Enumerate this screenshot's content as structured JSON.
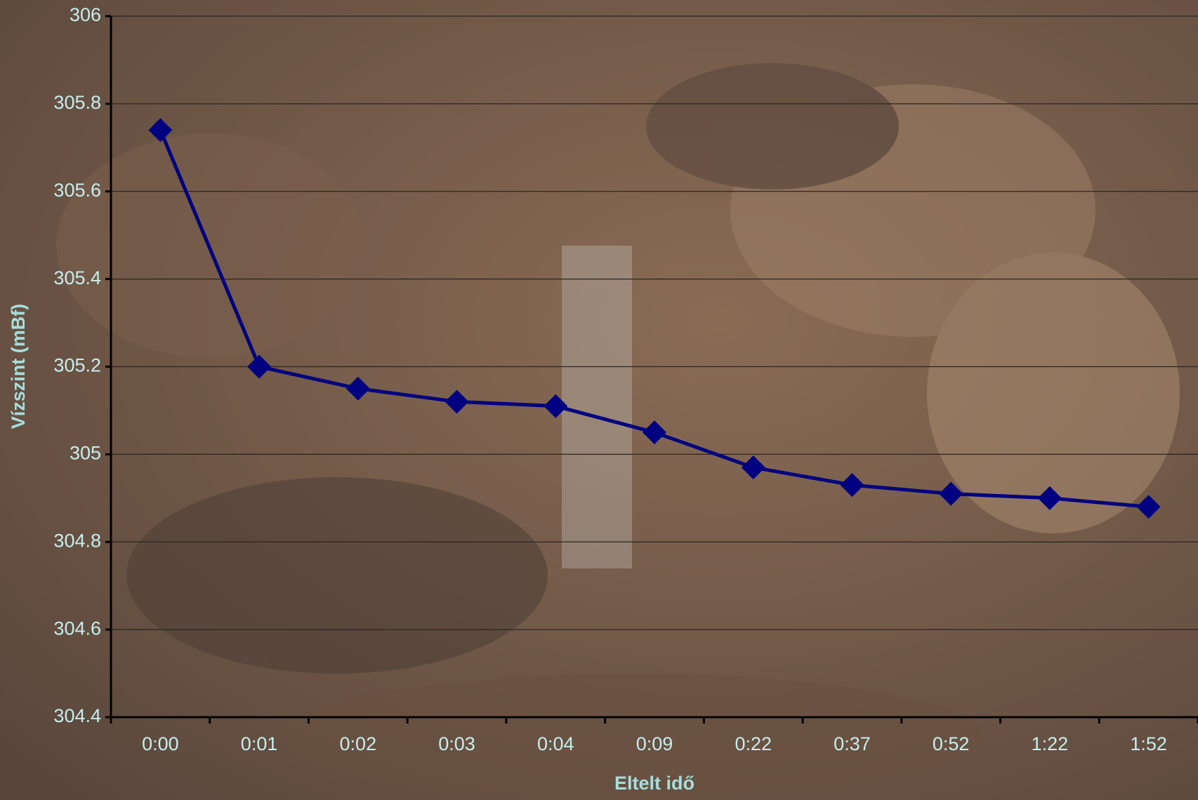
{
  "chart_data": {
    "type": "line",
    "x_label": "Eltelt idő",
    "y_label": "Vízszint (mBf)",
    "categories": [
      "0:00",
      "0:01",
      "0:02",
      "0:03",
      "0:04",
      "0:09",
      "0:22",
      "0:37",
      "0:52",
      "1:22",
      "1:52"
    ],
    "values": [
      305.74,
      305.2,
      305.15,
      305.12,
      305.11,
      305.05,
      304.97,
      304.93,
      304.91,
      304.9,
      304.88
    ],
    "color": "#000080",
    "ylim": [
      304.4,
      306
    ],
    "yticks": [
      304.4,
      304.6,
      304.8,
      305,
      305.2,
      305.4,
      305.6,
      305.8,
      306
    ],
    "grid": true
  }
}
